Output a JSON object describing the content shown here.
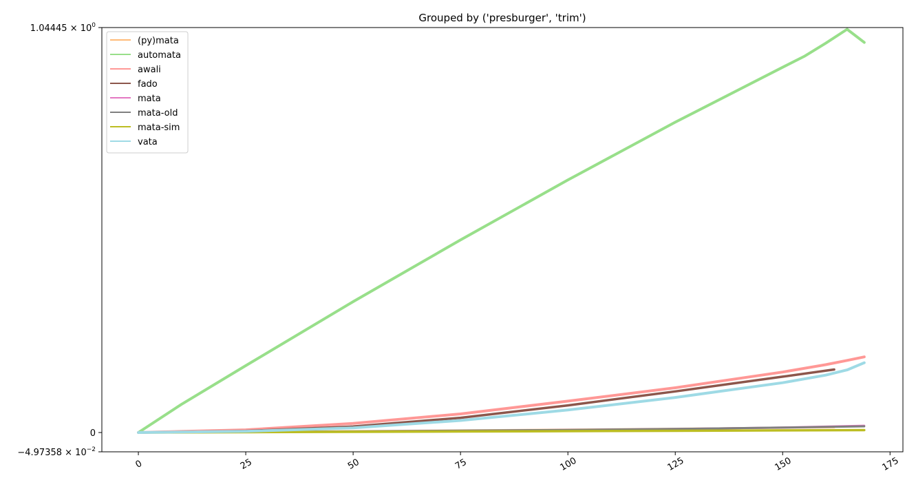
{
  "chart_data": {
    "type": "line",
    "title": "Grouped by ('presburger', 'trim')",
    "xlabel": "",
    "ylabel": "",
    "xlim": [
      -8.5,
      178
    ],
    "ylim": [
      -0.0497358,
      1.04445
    ],
    "x_ticks": [
      0,
      25,
      50,
      75,
      100,
      125,
      150,
      175
    ],
    "y_ticks": [
      {
        "value": 1.04445,
        "mantissa": "1.04445",
        "exponent": "0",
        "sign": ""
      },
      {
        "value": 0,
        "mantissa": "0",
        "exponent": "",
        "sign": ""
      },
      {
        "value": -0.0497358,
        "mantissa": "4.97358",
        "exponent": "−2",
        "sign": "−"
      }
    ],
    "tick_label_rotation": "30",
    "grid": false,
    "legend_position": "upper-left",
    "series": [
      {
        "name": "(py)mata",
        "color": "#ffbb78",
        "width": 3,
        "opacity": 0.85,
        "x": [
          0,
          25,
          50,
          75,
          100,
          125,
          150,
          162
        ],
        "y": [
          0,
          0.0015,
          0.0035,
          0.0055,
          0.0075,
          0.0097,
          0.0122,
          0.0135
        ]
      },
      {
        "name": "automata",
        "color": "#98df8a",
        "width": 4,
        "opacity": 1,
        "x": [
          0,
          10,
          25,
          50,
          75,
          100,
          125,
          150,
          155,
          160,
          165,
          169
        ],
        "y": [
          0,
          0.0725,
          0.1725,
          0.3375,
          0.4967,
          0.6513,
          0.8004,
          0.942,
          0.97,
          1.004,
          1.04,
          1.006
        ]
      },
      {
        "name": "awali",
        "color": "#ff9896",
        "width": 4,
        "opacity": 1,
        "x": [
          0,
          25,
          50,
          75,
          100,
          125,
          150,
          160,
          165,
          169
        ],
        "y": [
          0,
          0.007,
          0.0235,
          0.048,
          0.081,
          0.1155,
          0.156,
          0.175,
          0.186,
          0.195
        ]
      },
      {
        "name": "fado",
        "color": "#8c564b",
        "width": 3.5,
        "opacity": 1,
        "x": [
          0,
          25,
          50,
          75,
          100,
          125,
          150,
          162
        ],
        "y": [
          0,
          0.004,
          0.0155,
          0.038,
          0.07,
          0.106,
          0.144,
          0.1625
        ]
      },
      {
        "name": "mata",
        "color": "#e377c2",
        "width": 3,
        "opacity": 1,
        "x": [
          0,
          25,
          50,
          75,
          100,
          125,
          150,
          169
        ],
        "y": [
          0,
          0.001,
          0.0025,
          0.0045,
          0.0065,
          0.009,
          0.013,
          0.0175
        ]
      },
      {
        "name": "mata-old",
        "color": "#7f7f7f",
        "width": 3,
        "opacity": 1,
        "x": [
          0,
          25,
          50,
          75,
          100,
          125,
          150,
          169
        ],
        "y": [
          0,
          0.0012,
          0.0028,
          0.0048,
          0.0068,
          0.0092,
          0.0128,
          0.016
        ]
      },
      {
        "name": "mata-sim",
        "color": "#bcbd22",
        "width": 3.5,
        "opacity": 1,
        "x": [
          0,
          25,
          50,
          75,
          100,
          125,
          150,
          169
        ],
        "y": [
          0,
          0.0008,
          0.0017,
          0.0027,
          0.0036,
          0.0045,
          0.0055,
          0.0062
        ]
      },
      {
        "name": "vata",
        "color": "#9edae5",
        "width": 4,
        "opacity": 1,
        "x": [
          0,
          25,
          50,
          75,
          100,
          125,
          150,
          160,
          165,
          169
        ],
        "y": [
          0,
          0.003,
          0.012,
          0.031,
          0.058,
          0.0905,
          0.1285,
          0.148,
          0.1615,
          0.18
        ]
      }
    ]
  }
}
